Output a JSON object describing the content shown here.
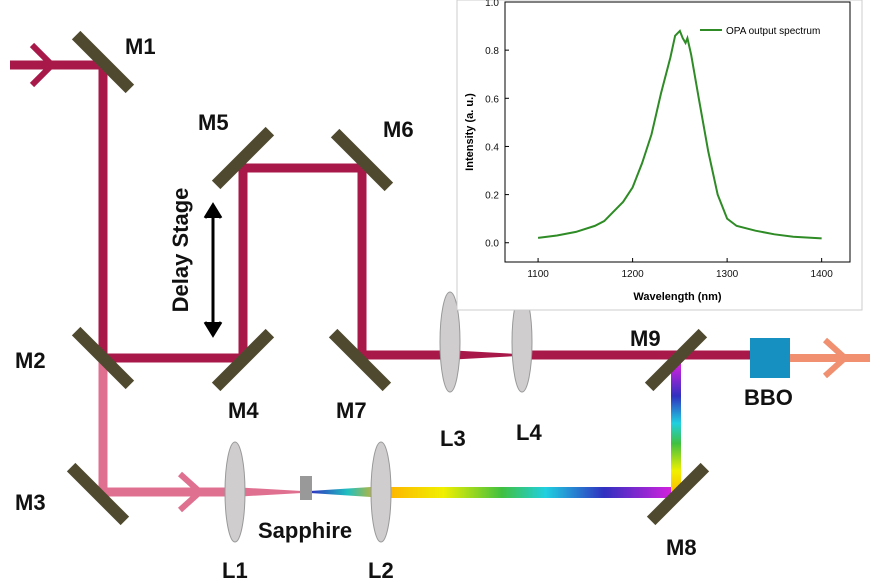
{
  "diagram": {
    "mirrors": [
      "M1",
      "M2",
      "M3",
      "M4",
      "M5",
      "M6",
      "M7",
      "M8",
      "M9"
    ],
    "lenses": [
      "L1",
      "L2",
      "L3",
      "L4"
    ],
    "crystals": [
      "Sapphire",
      "BBO"
    ],
    "delay_stage": "Delay Stage"
  },
  "chart_data": {
    "type": "line",
    "x_label": "Wavelength (nm)",
    "y_label": "Intensity (a. u.)",
    "x": [
      1100,
      1120,
      1140,
      1160,
      1170,
      1180,
      1190,
      1200,
      1210,
      1220,
      1230,
      1240,
      1245,
      1250,
      1253,
      1256,
      1258,
      1262,
      1270,
      1280,
      1290,
      1300,
      1310,
      1330,
      1350,
      1370,
      1400
    ],
    "series": [
      {
        "name": "OPA output spectrum",
        "color": "#2e8b25",
        "values": [
          0.02,
          0.03,
          0.045,
          0.07,
          0.09,
          0.13,
          0.17,
          0.23,
          0.33,
          0.45,
          0.62,
          0.77,
          0.86,
          0.88,
          0.85,
          0.83,
          0.85,
          0.78,
          0.6,
          0.38,
          0.2,
          0.1,
          0.07,
          0.05,
          0.035,
          0.025,
          0.018
        ]
      }
    ],
    "xlim": [
      1065,
      1430
    ],
    "ylim": [
      -0.08,
      1.0
    ],
    "xticks": [
      1100,
      1200,
      1300,
      1400
    ],
    "yticks": [
      {
        "value": 0,
        "label": "0.0"
      },
      0.2,
      0.4,
      0.6,
      0.8,
      {
        "value": 1,
        "label": "1.0"
      }
    ],
    "legend": "upper right"
  }
}
